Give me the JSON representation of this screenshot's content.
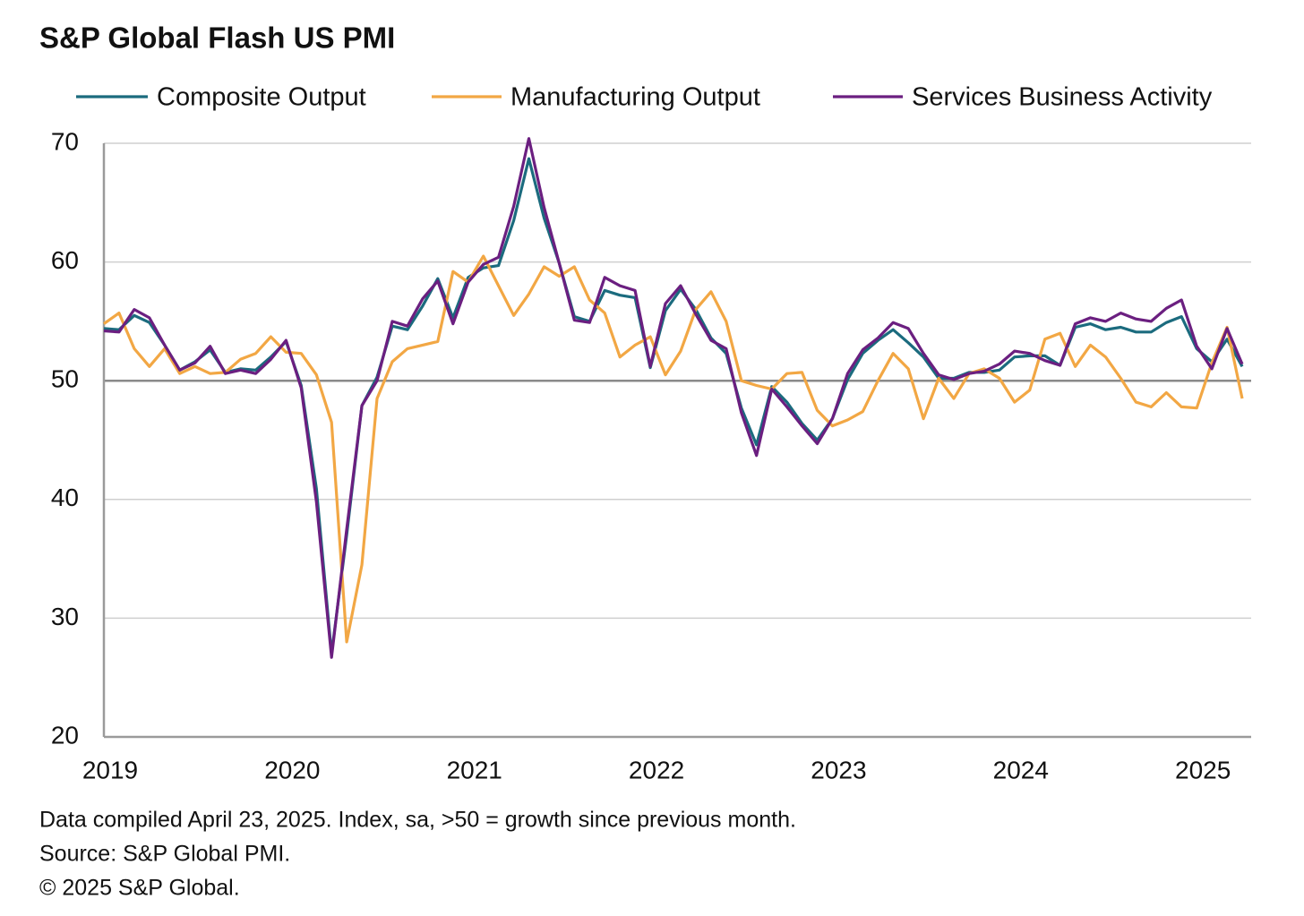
{
  "chart_data": {
    "type": "line",
    "title": "S&P Global Flash US PMI",
    "categories": [
      "2019",
      null,
      null,
      null,
      null,
      null,
      null,
      null,
      null,
      null,
      null,
      null,
      "2020",
      null,
      null,
      null,
      null,
      null,
      null,
      null,
      null,
      null,
      null,
      null,
      "2021",
      null,
      null,
      null,
      null,
      null,
      null,
      null,
      null,
      null,
      null,
      null,
      "2022",
      null,
      null,
      null,
      null,
      null,
      null,
      null,
      null,
      null,
      null,
      null,
      "2023",
      null,
      null,
      null,
      null,
      null,
      null,
      null,
      null,
      null,
      null,
      null,
      "2024",
      null,
      null,
      null,
      null,
      null,
      null,
      null,
      null,
      null,
      null,
      null,
      "2025",
      null,
      null,
      null
    ],
    "series": [
      {
        "name": "Composite Output",
        "color": "#1b6b7e",
        "values": [
          54.4,
          54.3,
          55.5,
          54.9,
          53.0,
          50.9,
          51.6,
          52.6,
          50.7,
          51.0,
          50.9,
          52.0,
          53.3,
          49.6,
          40.9,
          27.0,
          37.0,
          47.9,
          50.3,
          54.6,
          54.3,
          56.3,
          58.6,
          55.3,
          58.7,
          59.5,
          59.7,
          63.5,
          68.7,
          63.7,
          59.9,
          55.4,
          55.0,
          57.6,
          57.2,
          57.0,
          51.1,
          55.9,
          57.7,
          56.0,
          53.6,
          52.3,
          47.7,
          44.6,
          49.5,
          48.2,
          46.4,
          45.0,
          46.8,
          50.1,
          52.3,
          53.4,
          54.3,
          53.2,
          52.0,
          50.2,
          50.2,
          50.7,
          50.7,
          50.9,
          52.0,
          52.1,
          52.1,
          51.3,
          54.5,
          54.8,
          54.3,
          54.5,
          54.1,
          54.1,
          54.9,
          55.4,
          52.7,
          51.6,
          53.5,
          51.2
        ]
      },
      {
        "name": "Manufacturing Output",
        "color": "#f2a744",
        "values": [
          54.8,
          55.7,
          52.7,
          51.2,
          52.7,
          50.6,
          51.2,
          50.6,
          50.7,
          51.8,
          52.3,
          53.7,
          52.4,
          52.3,
          50.5,
          46.5,
          28.0,
          34.5,
          48.5,
          51.6,
          52.7,
          53.0,
          53.3,
          59.2,
          58.3,
          60.5,
          58.0,
          55.5,
          57.3,
          59.6,
          58.8,
          59.6,
          56.8,
          55.7,
          52.0,
          53.0,
          53.7,
          50.5,
          52.5,
          56.0,
          57.5,
          55.0,
          50.0,
          49.6,
          49.3,
          50.6,
          50.7,
          47.5,
          46.2,
          46.7,
          47.4,
          50.0,
          52.3,
          51.0,
          46.8,
          50.2,
          48.5,
          50.6,
          51.0,
          50.2,
          48.2,
          49.2,
          53.5,
          54.0,
          51.2,
          53.0,
          52.0,
          50.2,
          48.2,
          47.8,
          49.0,
          47.8,
          47.7,
          51.5,
          54.5,
          48.5
        ]
      },
      {
        "name": "Services Business Activity",
        "color": "#6b1f80",
        "values": [
          54.2,
          54.1,
          56.0,
          55.3,
          53.0,
          50.9,
          51.5,
          52.9,
          50.6,
          50.9,
          50.6,
          51.8,
          53.4,
          49.4,
          39.8,
          26.7,
          37.5,
          47.9,
          50.0,
          55.0,
          54.6,
          56.9,
          58.4,
          54.8,
          58.3,
          59.8,
          60.4,
          64.7,
          70.4,
          64.6,
          59.9,
          55.1,
          54.9,
          58.7,
          58.0,
          57.6,
          51.2,
          56.5,
          58.0,
          55.6,
          53.4,
          52.7,
          47.3,
          43.7,
          49.3,
          47.8,
          46.2,
          44.7,
          46.8,
          50.6,
          52.6,
          53.6,
          54.9,
          54.4,
          52.3,
          50.5,
          50.1,
          50.6,
          50.8,
          51.4,
          52.5,
          52.3,
          51.7,
          51.3,
          54.8,
          55.3,
          55.0,
          55.7,
          55.2,
          55.0,
          56.1,
          56.8,
          52.9,
          51.0,
          54.4,
          51.4
        ]
      }
    ],
    "ylim": [
      20,
      70
    ],
    "yticks": [
      20,
      30,
      40,
      50,
      60,
      70
    ],
    "grid": true,
    "reference_line": 50,
    "notes": [
      "Data compiled April 23, 2025. Index,  sa, >50 = growth since previous month.",
      "Source: S&P Global PMI.",
      "© 2025 S&P Global."
    ]
  }
}
